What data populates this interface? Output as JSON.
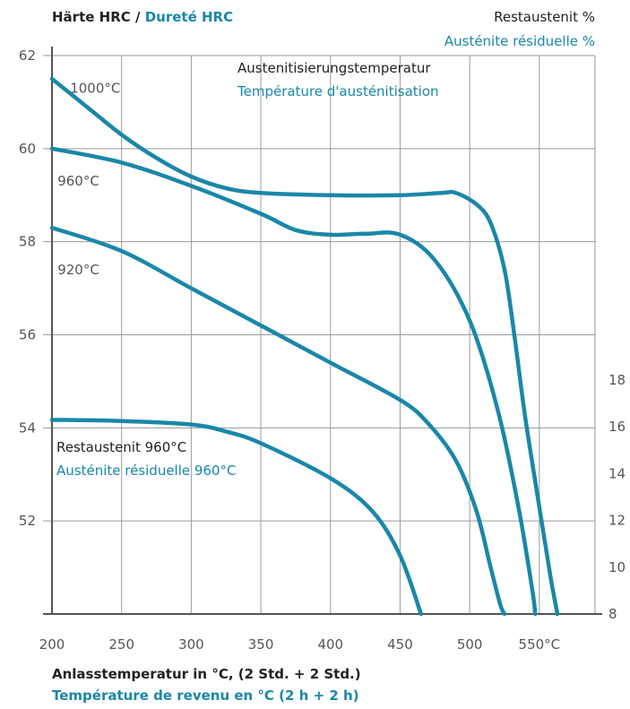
{
  "colors": {
    "curve": "#1a87a8",
    "text_de": "#222222",
    "text_fr": "#1a87a8",
    "grid": "#9a9a9a",
    "axis": "#555555",
    "tick_text": "#555555"
  },
  "header": {
    "ylabel_de": "Härte HRC",
    "ylabel_sep": " / ",
    "ylabel_fr": "Dureté HRC",
    "y2label_de": "Restaustenit %",
    "y2label_fr": "Austénite résiduelle %"
  },
  "legend": {
    "title_de": "Austenitisierungstemperatur",
    "title_fr": "Température d'austénitisation"
  },
  "footer": {
    "xlabel_de": "Anlasstemperatur in °C, (2 Std. + 2 Std.)",
    "xlabel_fr": "Température de revenu en °C (2 h + 2 h)"
  },
  "chart_data": {
    "type": "line",
    "x_ticks": [
      "200",
      "250",
      "300",
      "350",
      "400",
      "450",
      "500",
      "550°C"
    ],
    "x_tick_values": [
      200,
      250,
      300,
      350,
      400,
      450,
      500,
      550
    ],
    "xlim": [
      200,
      590
    ],
    "y_ticks": [
      "62",
      "60",
      "58",
      "56",
      "54",
      "52"
    ],
    "y_tick_values": [
      62,
      60,
      58,
      56,
      54,
      52
    ],
    "ylim": [
      50,
      62
    ],
    "y2_ticks": [
      "18",
      "16",
      "14",
      "12",
      "10",
      "8"
    ],
    "y2_tick_values": [
      18,
      16,
      14,
      12,
      10,
      8
    ],
    "y2lim": [
      8,
      18
    ],
    "grid": true,
    "series": [
      {
        "name": "1000°C",
        "axis": "left",
        "x": [
          200,
          225,
          250,
          275,
          300,
          325,
          350,
          400,
          450,
          480,
          490,
          505,
          515,
          525,
          532,
          540,
          550,
          558,
          563
        ],
        "y": [
          61.5,
          60.9,
          60.3,
          59.8,
          59.4,
          59.15,
          59.05,
          59.0,
          59.0,
          59.05,
          59.05,
          58.8,
          58.4,
          57.4,
          56.0,
          54.2,
          52.3,
          50.8,
          50.0
        ]
      },
      {
        "name": "960°C",
        "axis": "left",
        "x": [
          200,
          250,
          300,
          350,
          375,
          400,
          425,
          450,
          475,
          500,
          520,
          535,
          545,
          547
        ],
        "y": [
          60.0,
          59.7,
          59.2,
          58.6,
          58.25,
          58.15,
          58.17,
          58.15,
          57.6,
          56.3,
          54.4,
          52.3,
          50.5,
          50.0
        ]
      },
      {
        "name": "920°C",
        "axis": "left",
        "x": [
          200,
          250,
          300,
          350,
          400,
          450,
          470,
          490,
          505,
          515,
          522,
          525
        ],
        "y": [
          58.3,
          57.8,
          57.0,
          56.2,
          55.4,
          54.6,
          54.1,
          53.3,
          52.2,
          51.0,
          50.2,
          50.0
        ]
      },
      {
        "name": "Restaustenit 960°C",
        "axis": "right",
        "x": [
          200,
          250,
          300,
          325,
          350,
          400,
          430,
          450,
          465
        ],
        "y": [
          16.3,
          16.25,
          16.1,
          15.8,
          15.3,
          13.8,
          12.4,
          10.5,
          8.0
        ]
      }
    ],
    "curve_labels": [
      {
        "text": "1000°C",
        "x": 213,
        "y": 61.3
      },
      {
        "text": "960°C",
        "x": 204,
        "y": 59.3
      },
      {
        "text": "920°C",
        "x": 204,
        "y": 57.4
      }
    ],
    "annotation": {
      "line1": "Restaustenit  960°C",
      "line2": "Austénite résiduelle 960°C"
    }
  }
}
